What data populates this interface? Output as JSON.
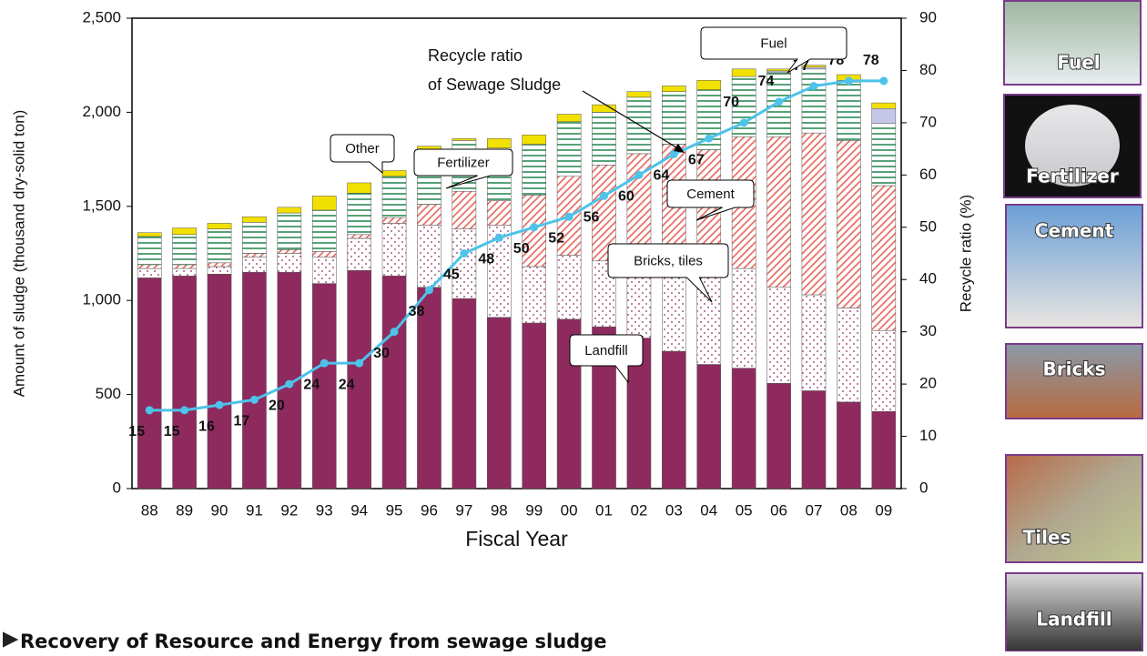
{
  "chart_data": {
    "type": "bar",
    "stacked": true,
    "categories": [
      "88",
      "89",
      "90",
      "91",
      "92",
      "93",
      "94",
      "95",
      "96",
      "97",
      "98",
      "99",
      "00",
      "01",
      "02",
      "03",
      "04",
      "05",
      "06",
      "07",
      "08",
      "09"
    ],
    "series": [
      {
        "name": "Landfill",
        "color": "#8e2a5e",
        "pattern": "solid",
        "values": [
          1120,
          1130,
          1140,
          1150,
          1150,
          1090,
          1160,
          1130,
          1070,
          1010,
          910,
          880,
          900,
          860,
          800,
          730,
          660,
          640,
          560,
          520,
          460,
          410
        ]
      },
      {
        "name": "Bricks, tiles",
        "color": "#8e2a5e",
        "pattern": "dots",
        "values": [
          50,
          40,
          40,
          80,
          100,
          140,
          170,
          280,
          330,
          370,
          490,
          300,
          340,
          350,
          400,
          430,
          470,
          530,
          510,
          510,
          500,
          430
        ]
      },
      {
        "name": "Cement",
        "color": "#e8736b",
        "pattern": "hatch",
        "values": [
          20,
          20,
          20,
          20,
          20,
          30,
          20,
          30,
          110,
          200,
          130,
          380,
          420,
          510,
          580,
          670,
          670,
          700,
          800,
          860,
          890,
          770
        ]
      },
      {
        "name": "Fertilizer",
        "color": "#2e8b57",
        "pattern": "hlines",
        "values": [
          150,
          160,
          180,
          165,
          195,
          220,
          220,
          220,
          290,
          270,
          280,
          270,
          290,
          280,
          300,
          280,
          320,
          320,
          340,
          340,
          310,
          330
        ]
      },
      {
        "name": "Fuel",
        "color": "#c6c6e8",
        "pattern": "solid",
        "values": [
          0,
          0,
          0,
          0,
          0,
          0,
          0,
          0,
          0,
          0,
          0,
          0,
          0,
          0,
          0,
          0,
          0,
          0,
          10,
          10,
          10,
          80
        ]
      },
      {
        "name": "Other",
        "color": "#f2e100",
        "pattern": "solid",
        "values": [
          20,
          35,
          30,
          30,
          30,
          75,
          55,
          30,
          20,
          10,
          50,
          50,
          40,
          40,
          30,
          30,
          50,
          40,
          10,
          10,
          30,
          30
        ]
      },
      {
        "type": "line",
        "axis": "y2",
        "color": "#4dc3ea",
        "values": [
          15,
          15,
          16,
          17,
          20,
          24,
          24,
          30,
          38,
          45,
          48,
          50,
          52,
          56,
          60,
          64,
          67,
          70,
          74,
          77,
          78,
          78
        ]
      }
    ],
    "annotations": [
      {
        "text": "Recycle ratio"
      },
      {
        "text": "of Sewage Sludge"
      }
    ],
    "xlabel": "Fiscal Year",
    "ylabel": "Amount of sludge (thousand dry-solid ton)",
    "y2label": "Recycle ratio (%)",
    "ylim": [
      0,
      2500
    ],
    "yticks": [
      0,
      500,
      {
        "value": 1000,
        "label": "1,000"
      },
      {
        "value": 1500,
        "label": "1,500"
      },
      {
        "value": 2000,
        "label": "2,000"
      },
      {
        "value": 2500,
        "label": "2,500"
      }
    ],
    "y2lim": [
      0,
      90
    ],
    "y2ticks": [
      0,
      10,
      20,
      30,
      40,
      50,
      60,
      70,
      80,
      90
    ],
    "grid": false
  },
  "side_panels": [
    "Fuel",
    "Fertilizer",
    "Cement",
    "Bricks",
    "Tiles",
    "Landfill"
  ],
  "footer": "Recovery of Resource and Energy from sewage sludge"
}
